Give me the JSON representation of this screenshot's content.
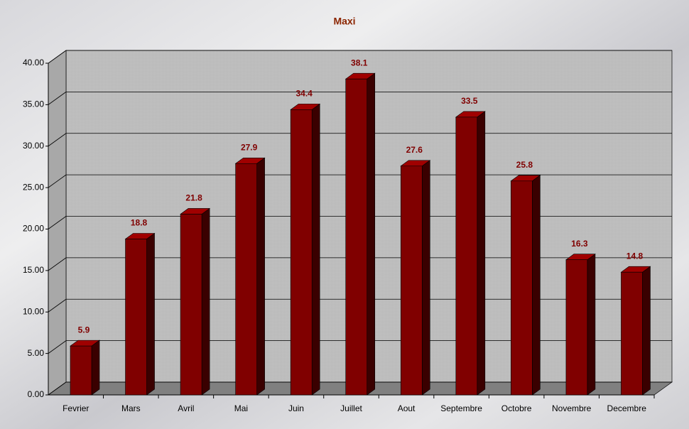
{
  "chart_data": {
    "type": "bar",
    "title": "Maxi",
    "categories": [
      "Fevrier",
      "Mars",
      "Avril",
      "Mai",
      "Juin",
      "Juillet",
      "Aout",
      "Septembre",
      "Octobre",
      "Novembre",
      "Decembre"
    ],
    "values": [
      5.9,
      18.8,
      21.8,
      27.9,
      34.4,
      38.1,
      27.6,
      33.5,
      25.8,
      16.3,
      14.8
    ],
    "color": "#800000",
    "ylim": [
      0,
      40
    ],
    "yticks": [
      {
        "value": 0,
        "label": "0.00"
      },
      {
        "value": 5,
        "label": "5.00"
      },
      {
        "value": 10,
        "label": "10.00"
      },
      {
        "value": 15,
        "label": "15.00"
      },
      {
        "value": 20,
        "label": "20.00"
      },
      {
        "value": 25,
        "label": "25.00"
      },
      {
        "value": 30,
        "label": "30.00"
      },
      {
        "value": 35,
        "label": "35.00"
      },
      {
        "value": 40,
        "label": "40.00"
      }
    ],
    "grid": true
  }
}
